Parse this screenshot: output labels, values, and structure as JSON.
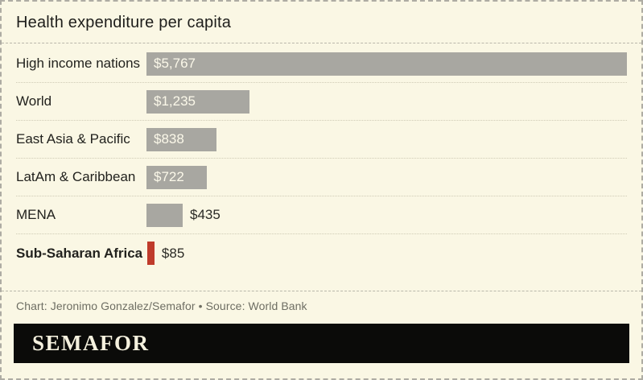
{
  "header": {
    "title": "Health expenditure per capita"
  },
  "footer": {
    "credit": "Chart: Jeronimo Gonzalez/Semafor • Source: World Bank"
  },
  "logo": {
    "text": "SEMAFOR"
  },
  "colors": {
    "background": "#faf7e4",
    "bar_default": "#a8a7a1",
    "bar_highlight": "#bf3b2b",
    "value_inside_text": "#fbf8e9",
    "value_outside_text": "#2a2a25",
    "title_text": "#1e1e1b",
    "credit_text": "#6e6e63",
    "logo_background": "#0b0b09",
    "logo_text": "#f5f1de"
  },
  "chart_data": {
    "type": "bar",
    "orientation": "horizontal",
    "title": "Health expenditure per capita",
    "xlabel": "",
    "ylabel": "",
    "xlim": [
      0,
      5767
    ],
    "grid": false,
    "legend": false,
    "categories": [
      "High income nations",
      "World",
      "East Asia & Pacific",
      "LatAm & Caribbean",
      "MENA",
      "Sub-Saharan Africa"
    ],
    "values": [
      5767,
      1235,
      838,
      722,
      435,
      85
    ],
    "value_labels": [
      "$5,767",
      "$1,235",
      "$838",
      "$722",
      "$435",
      "$85"
    ],
    "bars": [
      {
        "category": "High income nations",
        "value": 5767,
        "label": "$5,767",
        "color": "#a8a7a1",
        "label_position": "inside",
        "bold_category": false
      },
      {
        "category": "World",
        "value": 1235,
        "label": "$1,235",
        "color": "#a8a7a1",
        "label_position": "inside",
        "bold_category": false
      },
      {
        "category": "East Asia & Pacific",
        "value": 838,
        "label": "$838",
        "color": "#a8a7a1",
        "label_position": "inside",
        "bold_category": false
      },
      {
        "category": "LatAm & Caribbean",
        "value": 722,
        "label": "$722",
        "color": "#a8a7a1",
        "label_position": "inside",
        "bold_category": false
      },
      {
        "category": "MENA",
        "value": 435,
        "label": "$435",
        "color": "#a8a7a1",
        "label_position": "outside",
        "bold_category": false
      },
      {
        "category": "Sub-Saharan Africa",
        "value": 85,
        "label": "$85",
        "color": "#bf3b2b",
        "label_position": "outside",
        "bold_category": true
      }
    ]
  }
}
